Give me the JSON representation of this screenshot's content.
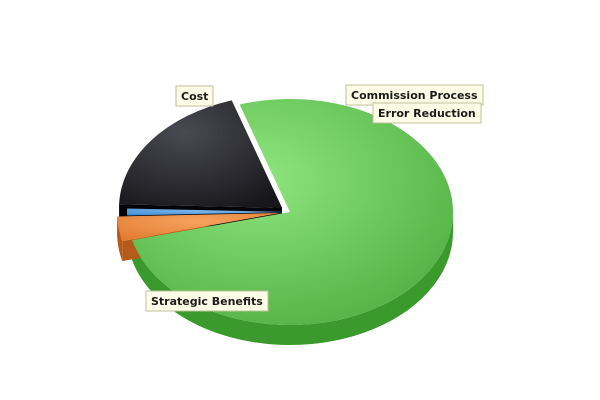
{
  "chart_data": {
    "type": "pie",
    "title": "",
    "three_d": true,
    "legend": "none",
    "slices": [
      {
        "label": "Strategic Benefits",
        "value": 76.0,
        "color": "#5fc04f",
        "exploded": false
      },
      {
        "label": "Cost",
        "value": 3.5,
        "color": "#e8873c",
        "exploded": true
      },
      {
        "label": "Commission Process",
        "value": 1.0,
        "color": "#4a9ad8",
        "exploded": false
      },
      {
        "label": "Error Reduction",
        "value": 19.5,
        "color": "#2a2a30",
        "exploded": true
      }
    ]
  }
}
